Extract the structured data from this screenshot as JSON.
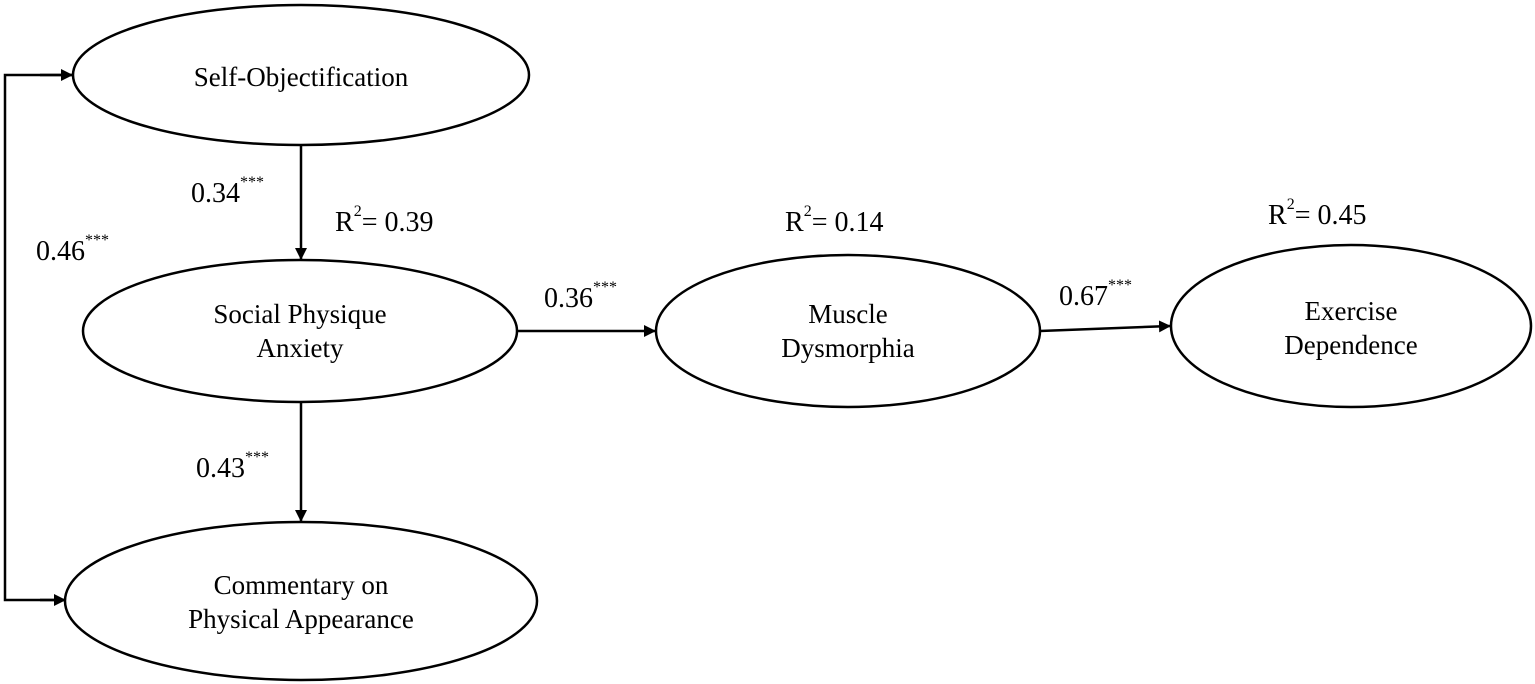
{
  "nodes": {
    "self_objectification": {
      "label": "Self-Objectification"
    },
    "social_physique_anxiety": {
      "line1": "Social Physique",
      "line2": "Anxiety"
    },
    "commentary": {
      "line1": "Commentary on",
      "line2": "Physical Appearance"
    },
    "muscle_dysmorphia": {
      "line1": "Muscle",
      "line2": "Dysmorphia",
      "r2": "0.14"
    },
    "exercise_dependence": {
      "line1": "Exercise",
      "line2": "Dependence",
      "r2": "0.45"
    }
  },
  "spa_r2": "0.39",
  "r2_prefix": "R",
  "r2_exp": "2",
  "r2_eq": "= ",
  "paths": {
    "so_to_spa": {
      "coef": "0.34",
      "sig": "***"
    },
    "spa_to_cpa": {
      "coef": "0.43",
      "sig": "***"
    },
    "cpa_to_so": {
      "coef": "0.46",
      "sig": "***"
    },
    "spa_to_md": {
      "coef": "0.36",
      "sig": "***"
    },
    "md_to_ed": {
      "coef": "0.67",
      "sig": "***"
    }
  },
  "colors": {
    "stroke": "#000000",
    "background": "#ffffff"
  }
}
